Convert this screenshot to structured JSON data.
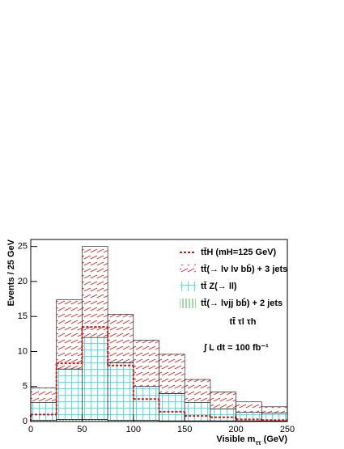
{
  "chart_data": {
    "type": "histogram",
    "y_label": "Events / 25 GeV",
    "x_label": [
      "Visible m",
      "ττ",
      " (GeV)"
    ],
    "bins": [
      0,
      25,
      50,
      75,
      100,
      125,
      150,
      175,
      200,
      225,
      250
    ],
    "xlim": [
      0,
      250
    ],
    "ylim": [
      0,
      26
    ],
    "xticks": [
      0,
      50,
      100,
      150,
      200,
      250
    ],
    "yticks": [
      0,
      5,
      10,
      15,
      20,
      25
    ],
    "series": [
      {
        "name": "tt̄(→ lνjj bb̄) + 2 jets",
        "color": "#1a9c1a",
        "hatch": "vertical",
        "stacked": true,
        "values": [
          0.2,
          0.3,
          0.3,
          0.2,
          0.2,
          0.1,
          0.1,
          0.1,
          0.1,
          0.1
        ]
      },
      {
        "name": "tt̄ Z(→ ll)",
        "color": "#22e0e0",
        "hatch": "grid",
        "stacked": true,
        "values": [
          2.5,
          7.2,
          11.7,
          8.2,
          4.8,
          3.9,
          2.6,
          1.7,
          1.2,
          1.1
        ]
      },
      {
        "name": "tt̄(→ lν lν bb̄) + 3 jets",
        "color": "#d02020",
        "hatch": "diagonal",
        "stacked": true,
        "values": [
          2.1,
          9.9,
          13,
          6.9,
          6.6,
          5.6,
          3.3,
          2.4,
          1.5,
          0.9
        ]
      },
      {
        "name": "tt̄H (mH=125 GeV)",
        "color": "#e01010",
        "hatch": "dashed-step",
        "stacked": false,
        "values": [
          1,
          8.3,
          13.5,
          8,
          3.2,
          1.4,
          0.8,
          0.6,
          0.3,
          0.2
        ]
      }
    ],
    "legend_order": [
      3,
      2,
      1,
      0
    ],
    "annotations": [
      "tt̄ τl τh",
      "∫ L dt = 100 fb⁻¹"
    ]
  }
}
